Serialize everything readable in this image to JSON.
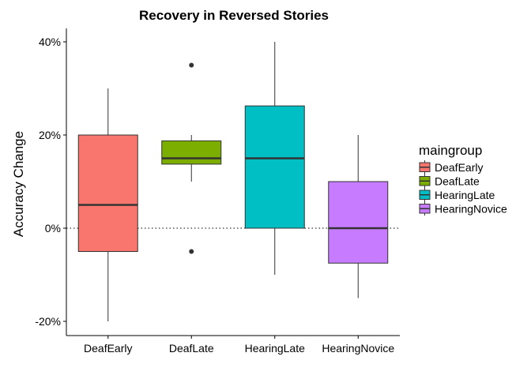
{
  "chart_data": {
    "type": "boxplot",
    "title": "Recovery in Reversed Stories",
    "xlabel": "",
    "ylabel": "Accuracy Change",
    "ylim": [
      -0.23,
      0.43
    ],
    "y_ticks": [
      {
        "value": -0.2,
        "label": "-20%"
      },
      {
        "value": 0.0,
        "label": "0%"
      },
      {
        "value": 0.2,
        "label": "20%"
      },
      {
        "value": 0.4,
        "label": "40%"
      }
    ],
    "reference_line": {
      "value": 0.0,
      "style": "dotted"
    },
    "grid": false,
    "legend": {
      "title": "maingroup",
      "position": "right"
    },
    "categories": [
      "DeafEarly",
      "DeafLate",
      "HearingLate",
      "HearingNovice"
    ],
    "series": [
      {
        "name": "DeafEarly",
        "color": "#F8766D",
        "whisker_low": -0.2,
        "q1": -0.05,
        "median": 0.05,
        "q3": 0.2,
        "whisker_high": 0.3,
        "outliers": []
      },
      {
        "name": "DeafLate",
        "color": "#7CAE00",
        "whisker_low": 0.1,
        "q1": 0.1375,
        "median": 0.15,
        "q3": 0.1875,
        "whisker_high": 0.2,
        "outliers": [
          0.35,
          -0.05
        ]
      },
      {
        "name": "HearingLate",
        "color": "#00BFC4",
        "whisker_low": -0.1,
        "q1": 0.0,
        "median": 0.15,
        "q3": 0.2625,
        "whisker_high": 0.4,
        "outliers": []
      },
      {
        "name": "HearingNovice",
        "color": "#C77CFF",
        "whisker_low": -0.15,
        "q1": -0.075,
        "median": 0.0,
        "q3": 0.1,
        "whisker_high": 0.2,
        "outliers": []
      }
    ]
  }
}
